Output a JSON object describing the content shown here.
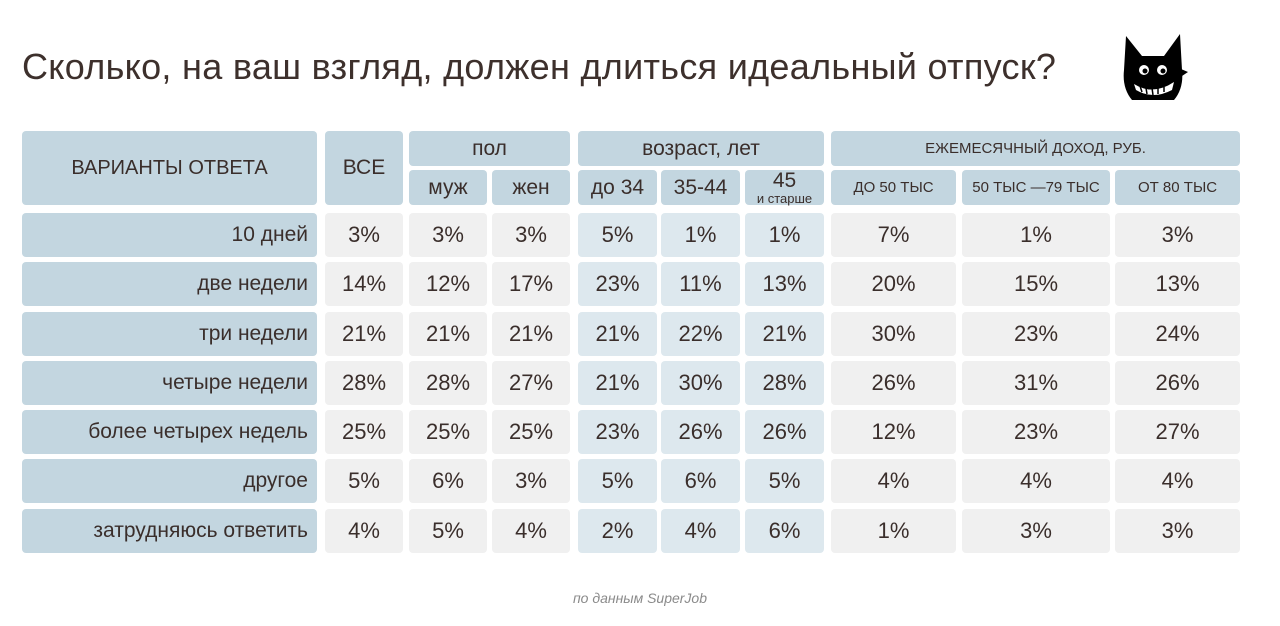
{
  "title": "Сколько, на ваш взгляд, должен длиться идеальный отпуск?",
  "footer": "по данным SuperJob",
  "logo": {
    "icon": "superjob-mascot-icon",
    "color": "#000000"
  },
  "colors": {
    "header_bg": "#c3d6e0",
    "cell_light": "#f0f0f0",
    "cell_blue": "#dde8ee",
    "text": "#3a2e2b"
  },
  "chart_data": {
    "type": "table",
    "title": "Сколько, на ваш взгляд, должен длиться идеальный отпуск?",
    "source": "по данным SuperJob",
    "row_header": "ВАРИАНТЫ ОТВЕТА",
    "groups": [
      {
        "label": "",
        "columns": [
          "ВСЕ"
        ]
      },
      {
        "label": "пол",
        "columns": [
          "муж",
          "жен"
        ]
      },
      {
        "label": "возраст, лет",
        "columns": [
          "до 34",
          "35-44",
          "45 и старше"
        ]
      },
      {
        "label": "ЕЖЕМЕСЯЧНЫЙ ДОХОД, РУБ.",
        "columns": [
          "ДО 50 ТЫС",
          "50 ТЫС —79 ТЫС",
          "ОТ 80 ТЫС"
        ]
      }
    ],
    "columns": [
      "ВСЕ",
      "муж",
      "жен",
      "до 34",
      "35-44",
      "45",
      "ДО 50 ТЫС",
      "50 ТЫС —79 ТЫС",
      "ОТ 80 ТЫС"
    ],
    "col45_sub": "и старше",
    "rows": [
      {
        "label": "10 дней",
        "values": [
          "3%",
          "3%",
          "3%",
          "5%",
          "1%",
          "1%",
          "7%",
          "1%",
          "3%"
        ]
      },
      {
        "label": "две недели",
        "values": [
          "14%",
          "12%",
          "17%",
          "23%",
          "11%",
          "13%",
          "20%",
          "15%",
          "13%"
        ]
      },
      {
        "label": "три недели",
        "values": [
          "21%",
          "21%",
          "21%",
          "21%",
          "22%",
          "21%",
          "30%",
          "23%",
          "24%"
        ]
      },
      {
        "label": "четыре недели",
        "values": [
          "28%",
          "28%",
          "27%",
          "21%",
          "30%",
          "28%",
          "26%",
          "31%",
          "26%"
        ]
      },
      {
        "label": "более четырех недель",
        "values": [
          "25%",
          "25%",
          "25%",
          "23%",
          "26%",
          "26%",
          "12%",
          "23%",
          "27%"
        ]
      },
      {
        "label": "другое",
        "values": [
          "5%",
          "6%",
          "3%",
          "5%",
          "6%",
          "5%",
          "4%",
          "4%",
          "4%"
        ]
      },
      {
        "label": "затрудняюсь ответить",
        "values": [
          "4%",
          "5%",
          "4%",
          "2%",
          "4%",
          "6%",
          "1%",
          "3%",
          "3%"
        ]
      }
    ]
  }
}
